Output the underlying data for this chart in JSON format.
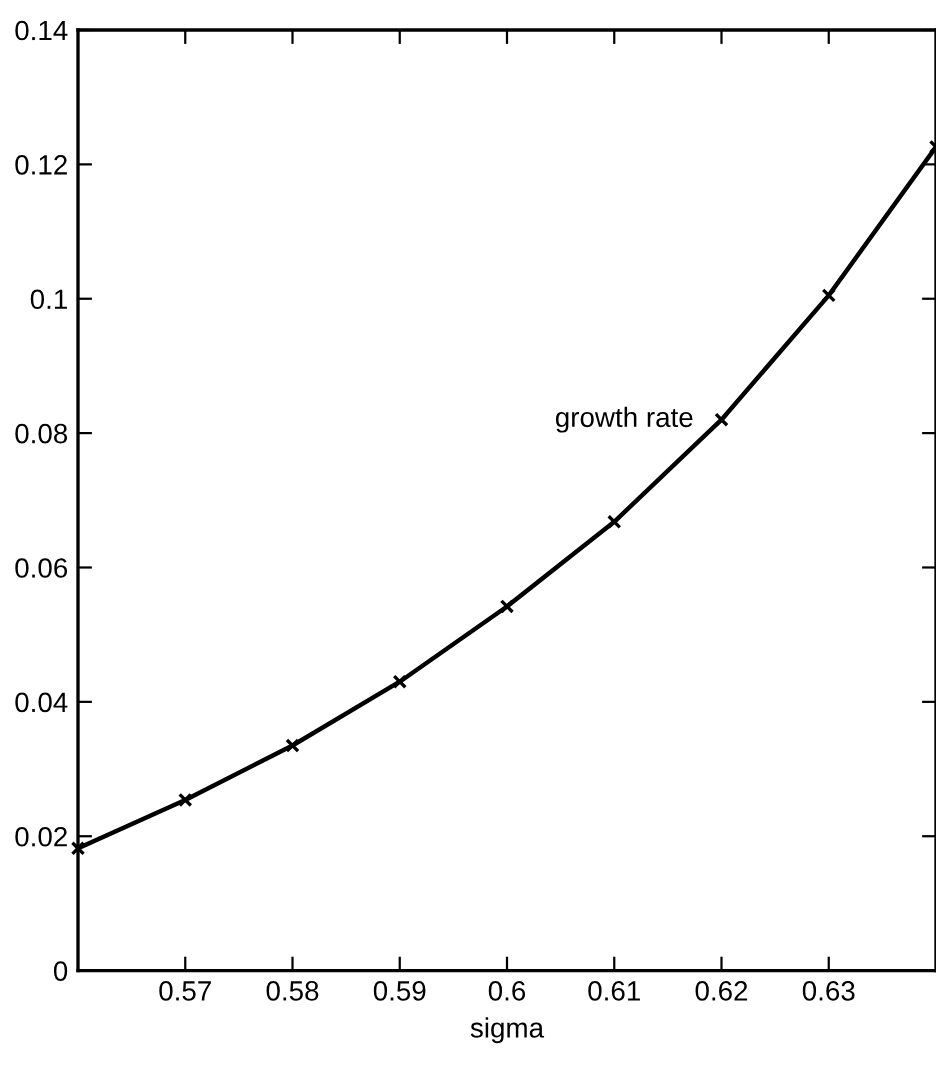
{
  "chart_data": {
    "type": "line",
    "xlabel": "sigma",
    "x": [
      0.56,
      0.57,
      0.58,
      0.59,
      0.6,
      0.61,
      0.62,
      0.63,
      0.64
    ],
    "series": [
      {
        "name": "growth rate",
        "color": "#000000",
        "values": [
          0.0182,
          0.0254,
          0.0335,
          0.043,
          0.0542,
          0.0668,
          0.082,
          0.1005,
          0.1226
        ]
      }
    ],
    "xlim": [
      0.56,
      0.64
    ],
    "xticks": [
      0.57,
      0.58,
      0.59,
      0.6,
      0.61,
      0.62,
      0.63
    ],
    "ylim": [
      0,
      0.14
    ],
    "yticks": [
      0,
      0.02,
      0.04,
      0.06,
      0.08,
      0.1,
      0.12,
      0.14
    ],
    "marker": "cross",
    "line_style": "solid",
    "grid": false,
    "legend": false
  }
}
